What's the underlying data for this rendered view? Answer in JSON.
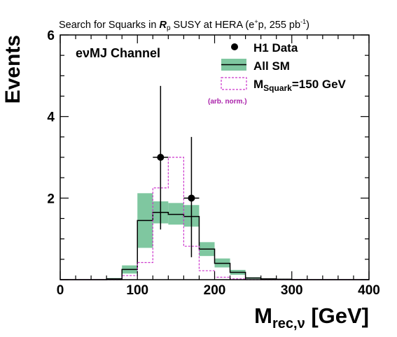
{
  "chart_data": {
    "type": "histogram",
    "title_parts": {
      "pre": "Search for Squarks in ",
      "rp": "R",
      "rp_sub": "p",
      "mid": " SUSY at HERA (e",
      "sup": "+",
      "post": "p, 255 pb",
      "lumi_sup": "-1",
      "close": ")"
    },
    "channel_label": "eνMJ Channel",
    "xlabel_main": "M",
    "xlabel_sub": "rec,ν",
    "xlabel_unit": " [GeV]",
    "ylabel": "Events",
    "xlim": [
      0,
      400
    ],
    "ylim": [
      0,
      6
    ],
    "x_ticks": [
      0,
      100,
      200,
      300,
      400
    ],
    "y_ticks": [
      2,
      4,
      6
    ],
    "bin_edges": [
      0,
      20,
      40,
      60,
      80,
      100,
      120,
      140,
      160,
      180,
      200,
      220,
      240,
      260,
      280,
      300,
      320,
      340,
      360,
      380,
      400
    ],
    "sm_prediction": [
      0.0,
      0.0,
      0.0,
      0.02,
      0.25,
      1.45,
      1.65,
      1.6,
      1.55,
      0.75,
      0.4,
      0.18,
      0.04,
      0.02,
      0.01,
      0.0,
      0.0,
      0.0,
      0.0,
      0.0
    ],
    "sm_band_low": [
      0.0,
      0.0,
      0.0,
      0.01,
      0.15,
      0.78,
      1.38,
      1.35,
      1.3,
      0.58,
      0.3,
      0.12,
      0.02,
      0.01,
      0.0,
      0.0,
      0.0,
      0.0,
      0.0,
      0.0
    ],
    "sm_band_high": [
      0.0,
      0.0,
      0.0,
      0.04,
      0.35,
      2.12,
      1.92,
      1.88,
      1.83,
      0.92,
      0.52,
      0.24,
      0.06,
      0.03,
      0.02,
      0.0,
      0.0,
      0.0,
      0.0,
      0.0
    ],
    "squark_signal": [
      0.0,
      0.0,
      0.0,
      0.0,
      0.1,
      0.42,
      2.25,
      3.0,
      0.82,
      0.22,
      0.06,
      0.02,
      0.0,
      0.0,
      0.0,
      0.0,
      0.0,
      0.0,
      0.0,
      0.0
    ],
    "data_points": [
      {
        "x": 130,
        "y": 3,
        "err_low": 1.77,
        "err_high": 1.75
      },
      {
        "x": 170,
        "y": 2,
        "err_low": 1.45,
        "err_high": 1.5
      }
    ],
    "legend": {
      "data": "H1 Data",
      "sm": "All SM",
      "signal_main": "M",
      "signal_sub": "Squark",
      "signal_post": "=150 GeV",
      "signal_note": "(arb. norm.)"
    },
    "colors": {
      "sm_band": "#7fc7a0",
      "sm_line": "#000000",
      "signal": "#cc33cc",
      "signal_note": "#aa22aa",
      "data": "#000000"
    }
  }
}
